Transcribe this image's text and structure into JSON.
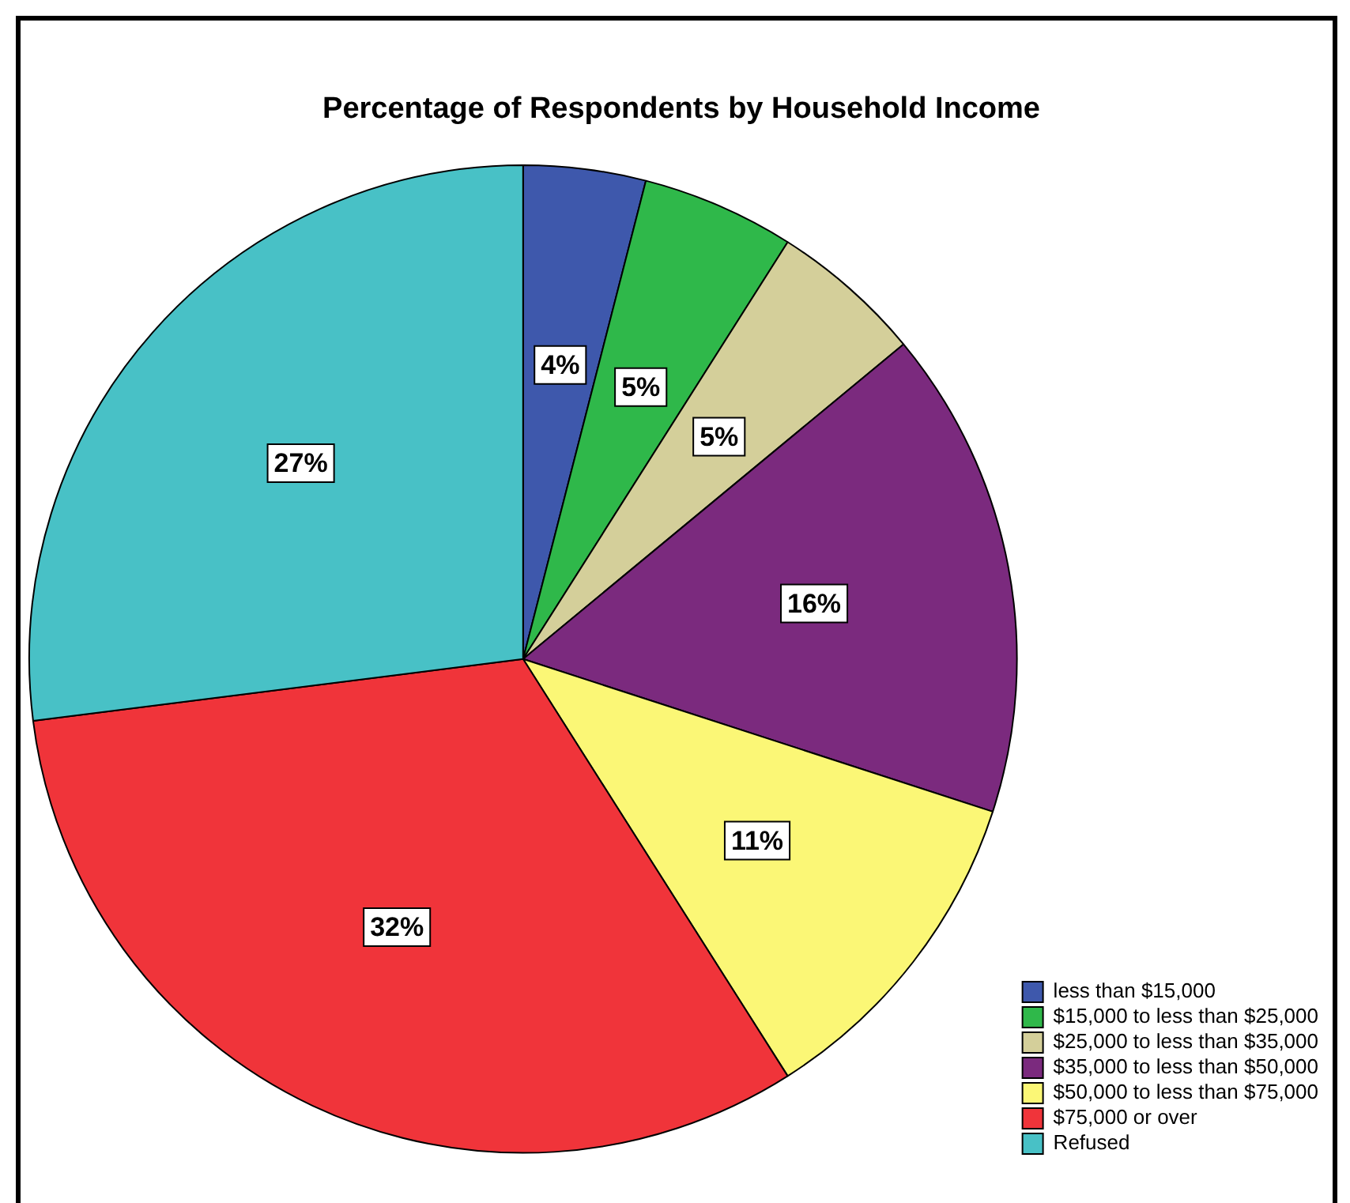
{
  "chart_data": {
    "type": "pie",
    "title": "Percentage of Respondents by Household Income",
    "categories": [
      "less than $15,000",
      "$15,000 to less than $25,000",
      "$25,000 to less than $35,000",
      "$35,000 to less than $50,000",
      "$50,000 to less than $75,000",
      "$75,000 or over",
      "Refused"
    ],
    "values": [
      4,
      5,
      5,
      16,
      11,
      32,
      27
    ],
    "value_labels": [
      "4%",
      "5%",
      "5%",
      "16%",
      "11%",
      "32%",
      "27%"
    ],
    "colors": [
      "#3e58ac",
      "#2fb84a",
      "#d4cf9a",
      "#7b2a7e",
      "#fbf776",
      "#f0343a",
      "#48c1c6"
    ],
    "legend": "bottom right"
  }
}
